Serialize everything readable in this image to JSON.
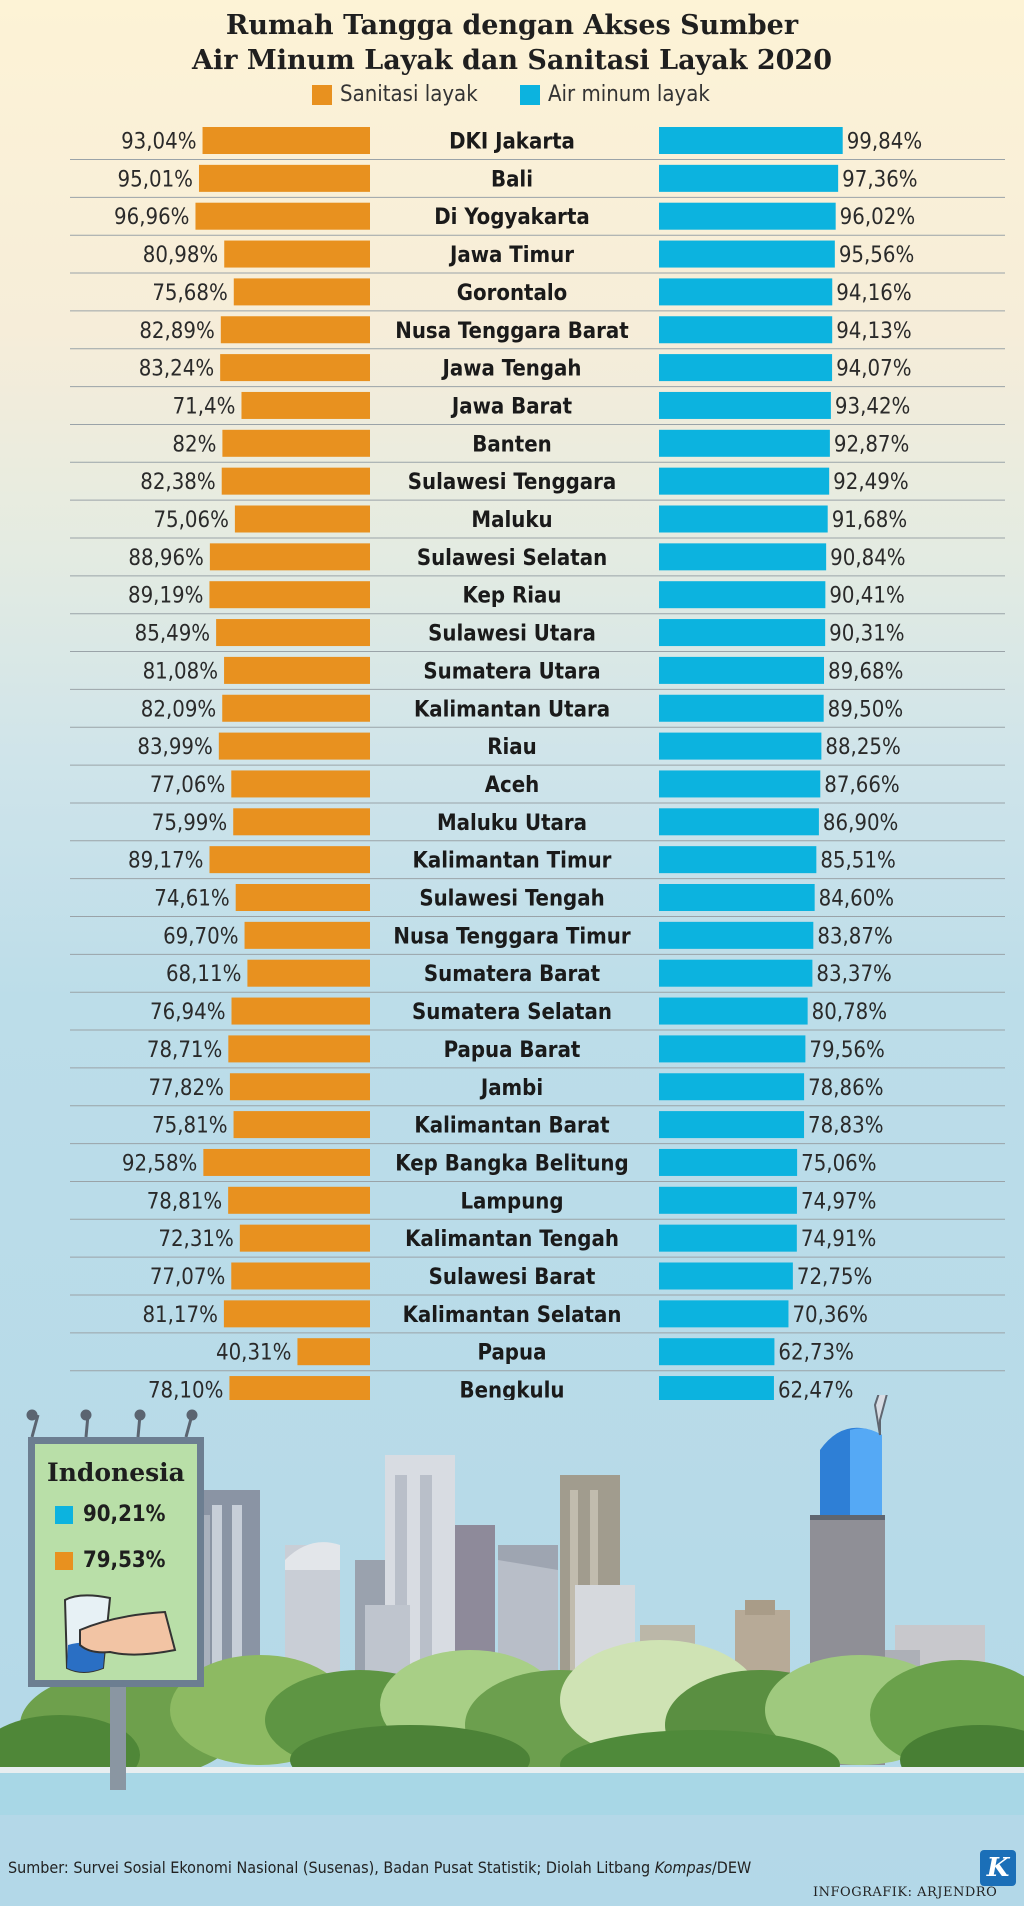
{
  "header": {
    "title_line1": "Rumah Tangga dengan Akses Sumber",
    "title_line2": "Air Minum Layak dan Sanitasi Layak 2020"
  },
  "legend": {
    "sanitasi": "Sanitasi layak",
    "air": "Air minum layak"
  },
  "colors": {
    "sanitasi": "#e8911f",
    "air": "#0cb3df"
  },
  "chart_data": {
    "type": "bar",
    "title": "Rumah Tangga dengan Akses Sumber Air Minum Layak dan Sanitasi Layak 2020",
    "categories": [
      "DKI Jakarta",
      "Bali",
      "Di Yogyakarta",
      "Jawa Timur",
      "Gorontalo",
      "Nusa Tenggara Barat",
      "Jawa Tengah",
      "Jawa Barat",
      "Banten",
      "Sulawesi Tenggara",
      "Maluku",
      "Sulawesi Selatan",
      "Kep Riau",
      "Sulawesi Utara",
      "Sumatera Utara",
      "Kalimantan Utara",
      "Riau",
      "Aceh",
      "Maluku Utara",
      "Kalimantan Timur",
      "Sulawesi Tengah",
      "Nusa Tenggara Timur",
      "Sumatera Barat",
      "Sumatera Selatan",
      "Papua Barat",
      "Jambi",
      "Kalimantan Barat",
      "Kep Bangka Belitung",
      "Lampung",
      "Kalimantan Tengah",
      "Sulawesi Barat",
      "Kalimantan Selatan",
      "Papua",
      "Bengkulu"
    ],
    "series": [
      {
        "name": "Sanitasi layak",
        "values": [
          93.04,
          95.01,
          96.96,
          80.98,
          75.68,
          82.89,
          83.24,
          71.4,
          82,
          82.38,
          75.06,
          88.96,
          89.19,
          85.49,
          81.08,
          82.09,
          83.99,
          77.06,
          75.99,
          89.17,
          74.61,
          69.7,
          68.11,
          76.94,
          78.71,
          77.82,
          75.81,
          92.58,
          78.81,
          72.31,
          77.07,
          81.17,
          40.31,
          78.1
        ],
        "labels": [
          "93,04%",
          "95,01%",
          "96,96%",
          "80,98%",
          "75,68%",
          "82,89%",
          "83,24%",
          "71,4%",
          "82%",
          "82,38%",
          "75,06%",
          "88,96%",
          "89,19%",
          "85,49%",
          "81,08%",
          "82,09%",
          "83,99%",
          "77,06%",
          "75,99%",
          "89,17%",
          "74,61%",
          "69,70%",
          "68,11%",
          "76,94%",
          "78,71%",
          "77,82%",
          "75,81%",
          "92,58%",
          "78,81%",
          "72,31%",
          "77,07%",
          "81,17%",
          "40,31%",
          "78,10%"
        ]
      },
      {
        "name": "Air minum layak",
        "values": [
          99.84,
          97.36,
          96.02,
          95.56,
          94.16,
          94.13,
          94.07,
          93.42,
          92.87,
          92.49,
          91.68,
          90.84,
          90.41,
          90.31,
          89.68,
          89.5,
          88.25,
          87.66,
          86.9,
          85.51,
          84.6,
          83.87,
          83.37,
          80.78,
          79.56,
          78.86,
          78.83,
          75.06,
          74.97,
          74.91,
          72.75,
          70.36,
          62.73,
          62.47
        ],
        "labels": [
          "99,84%",
          "97,36%",
          "96,02%",
          "95,56%",
          "94,16%",
          "94,13%",
          "94,07%",
          "93,42%",
          "92,87%",
          "92,49%",
          "91,68%",
          "90,84%",
          "90,41%",
          "90,31%",
          "89,68%",
          "89,50%",
          "88,25%",
          "87,66%",
          "86,90%",
          "85,51%",
          "84,60%",
          "83,87%",
          "83,37%",
          "80,78%",
          "79,56%",
          "78,86%",
          "78,83%",
          "75,06%",
          "74,97%",
          "74,91%",
          "72,75%",
          "70,36%",
          "62,73%",
          "62,47%"
        ]
      }
    ],
    "legend": "top"
  },
  "national": {
    "title": "Indonesia",
    "air": "90,21%",
    "sanitasi": "79,53%"
  },
  "footer": {
    "source": "Sumber: Survei Sosial Ekonomi Nasional (Susenas), Badan Pusat Statistik; Diolah Litbang ",
    "source_italic": "Kompas",
    "source_tail": "/DEW",
    "credit": "INFOGRAFIK: ARJENDRO",
    "logo": "K"
  }
}
